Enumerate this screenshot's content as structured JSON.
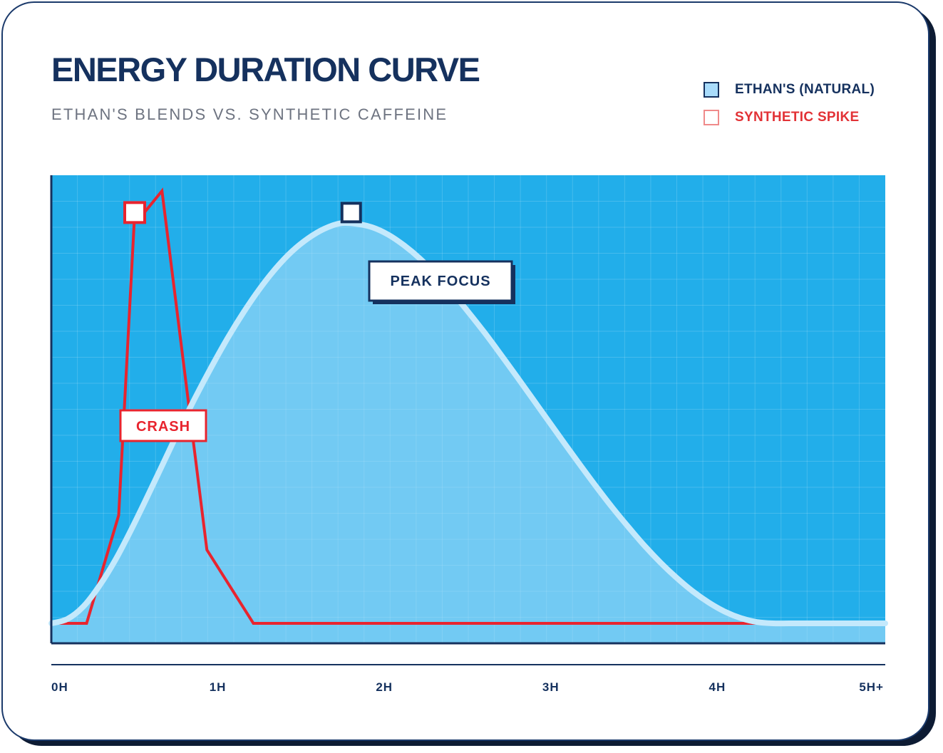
{
  "title": "ENERGY DURATION CURVE",
  "subtitle": "ETHAN'S BLENDS VS. SYNTHETIC CAFFEINE",
  "legend": [
    {
      "label": "ETHAN'S (NATURAL)",
      "color": "#a9dcfb"
    },
    {
      "label": "SYNTHETIC SPIKE",
      "color": "#e23236"
    }
  ],
  "colors": {
    "plot_bg": "#22aeea",
    "natural_fill": "#b5e2f9",
    "natural_line": "#c4e9fc",
    "synthetic_line": "#e8242e",
    "navy": "#15315e"
  },
  "chart_data": {
    "type": "line",
    "title": "ENERGY DURATION CURVE",
    "xlabel": "",
    "ylabel": "",
    "xlim": [
      0,
      5.2
    ],
    "ylim": [
      0,
      100
    ],
    "x_ticks": [
      {
        "value": 0,
        "label": "0H"
      },
      {
        "value": 1,
        "label": "1H"
      },
      {
        "value": 2,
        "label": "2H"
      },
      {
        "value": 3,
        "label": "3H"
      },
      {
        "value": 4,
        "label": "4H"
      },
      {
        "value": 5,
        "label": "5H+"
      }
    ],
    "grid": true,
    "series": [
      {
        "name": "ETHAN'S (NATURAL)",
        "type": "area",
        "x": [
          0,
          0.1,
          0.2,
          0.3,
          0.4,
          0.5,
          0.6,
          0.7,
          0.8,
          0.9,
          1.0,
          1.1,
          1.2,
          1.3,
          1.4,
          1.5,
          1.6,
          1.7,
          1.8,
          1.9,
          2.0,
          2.1,
          2.2,
          2.3,
          2.4,
          2.5,
          2.6,
          2.7,
          2.8,
          2.9,
          3.0,
          3.1,
          3.2,
          3.3,
          3.4,
          3.5,
          3.6,
          3.7,
          3.8,
          3.9,
          4.0,
          4.1,
          4.2,
          4.3,
          4.4,
          4.5,
          4.6,
          4.7,
          4.8,
          4.9,
          5.0,
          5.2
        ],
        "values": [
          0,
          1.0,
          3.9,
          8.7,
          14.7,
          21.8,
          29.4,
          37.2,
          45.0,
          52.4,
          59.4,
          66.0,
          72.0,
          77.4,
          82.1,
          86.0,
          89.0,
          91.2,
          92.5,
          92.4,
          91.6,
          89.9,
          87.4,
          84.3,
          80.6,
          76.5,
          72.0,
          67.3,
          62.3,
          57.2,
          52.0,
          46.8,
          41.6,
          36.5,
          31.5,
          26.7,
          22.2,
          17.9,
          14.0,
          10.5,
          7.4,
          4.8,
          2.7,
          1.2,
          0.3,
          0,
          0,
          0,
          0,
          0,
          0,
          0
        ]
      },
      {
        "name": "SYNTHETIC SPIKE",
        "type": "line",
        "x": [
          0,
          0.22,
          0.42,
          0.52,
          0.58,
          0.69,
          0.97,
          1.26,
          5.2
        ],
        "values": [
          0,
          0,
          25,
          95,
          95,
          100,
          17,
          0,
          0
        ]
      }
    ],
    "annotations": [
      {
        "text": "PEAK FOCUS",
        "x": 1.87,
        "y": 95,
        "series": "ETHAN'S (NATURAL)"
      },
      {
        "text": "CRASH",
        "x": 0.52,
        "y": 95,
        "series": "SYNTHETIC SPIKE"
      }
    ]
  }
}
